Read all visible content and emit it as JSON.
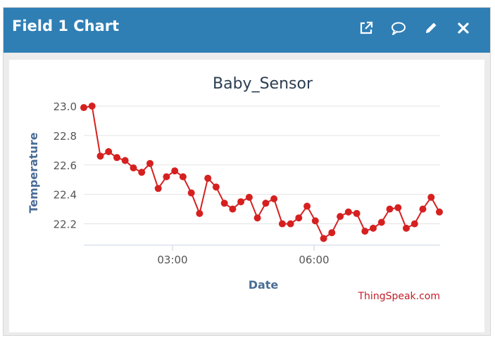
{
  "header": {
    "title": "Field 1 Chart",
    "icons": [
      "external-link-icon",
      "comment-icon",
      "pencil-icon",
      "close-icon"
    ]
  },
  "colors": {
    "header_bg": "#2f7fb5",
    "series": "#d62020",
    "title_text": "#2b3d50",
    "axis_label": "#4a6d96",
    "credit": "#c0202a"
  },
  "credit": "ThingSpeak.com",
  "chart_data": {
    "type": "line",
    "title": "Baby_Sensor",
    "xlabel": "Date",
    "ylabel": "Temperature",
    "x_ticks": [
      "03:00",
      "06:00"
    ],
    "y_ticks": [
      "23.0",
      "22.8",
      "22.6",
      "22.4",
      "22.2"
    ],
    "ylim": [
      22.05,
      23.0
    ],
    "grid": true,
    "legend": "none",
    "series": [
      {
        "values": [
          22.99,
          23.0,
          22.66,
          22.69,
          22.65,
          22.63,
          22.58,
          22.55,
          22.61,
          22.44,
          22.52,
          22.56,
          22.52,
          22.41,
          22.27,
          22.51,
          22.45,
          22.34,
          22.3,
          22.35,
          22.38,
          22.24,
          22.34,
          22.37,
          22.2,
          22.2,
          22.24,
          22.32,
          22.22,
          22.1,
          22.14,
          22.25,
          22.28,
          22.27,
          22.15,
          22.17,
          22.21,
          22.3,
          22.31,
          22.17,
          22.2,
          22.3,
          22.38,
          22.28
        ]
      }
    ]
  }
}
